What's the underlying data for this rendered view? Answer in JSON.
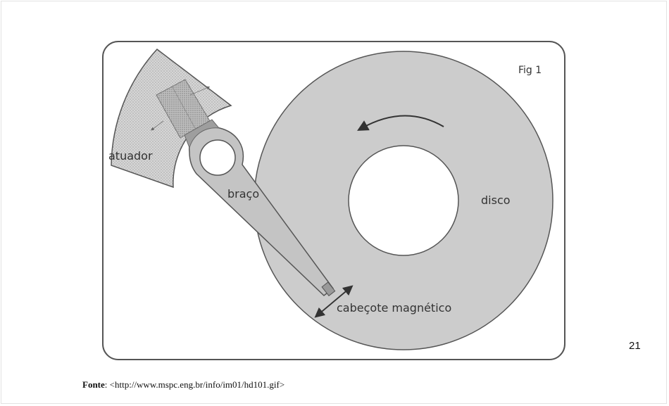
{
  "figure": {
    "tag": "Fig 1",
    "labels": {
      "actuator": "atuador",
      "arm": "braço",
      "disk": "disco",
      "head": "cabeçote magnético"
    },
    "colors": {
      "disk_fill": "#cccccc",
      "arm_fill": "#c4c4c4",
      "stroke": "#555555",
      "frame": "#555555"
    }
  },
  "page": {
    "number": "21"
  },
  "source": {
    "label": "Fonte",
    "separator": ": ",
    "url": "<http://www.mspc.eng.br/info/im01/hd101.gif>"
  }
}
